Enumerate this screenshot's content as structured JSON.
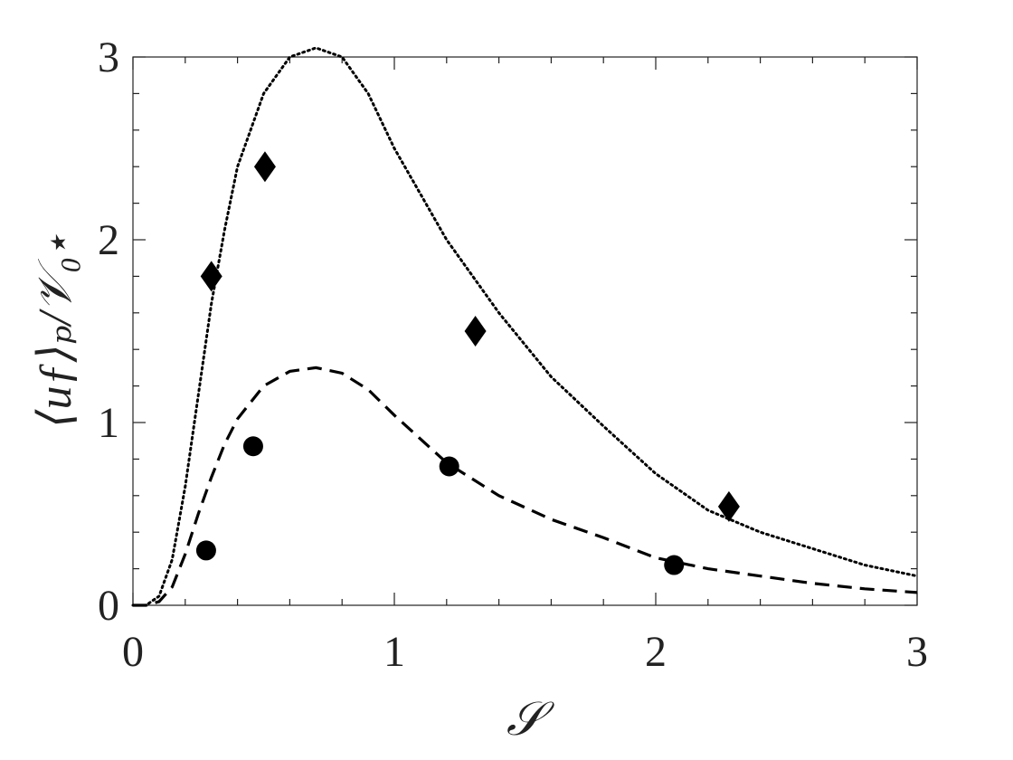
{
  "chart_data": {
    "type": "line",
    "x_label": "𝒮",
    "y_label": "⟨uƒ⟩ₚ/𝒱₀⋆",
    "xlim": [
      0,
      3
    ],
    "ylim": [
      0,
      3
    ],
    "xticks": [
      0,
      1,
      2,
      3
    ],
    "yticks": [
      0,
      1,
      2,
      3
    ],
    "xminorticks": [
      0.2,
      0.4,
      0.6,
      0.8,
      1.2,
      1.4,
      1.6,
      1.8,
      2.2,
      2.4,
      2.6,
      2.8
    ],
    "yminorticks": [
      0.2,
      0.4,
      0.6,
      0.8,
      1.2,
      1.4,
      1.6,
      1.8,
      2.2,
      2.4,
      2.6,
      2.8
    ],
    "grid": false,
    "series": [
      {
        "style": "dotted",
        "color": "#000000",
        "x": [
          0,
          0.05,
          0.1,
          0.15,
          0.2,
          0.25,
          0.3,
          0.35,
          0.4,
          0.5,
          0.6,
          0.7,
          0.8,
          0.9,
          1.0,
          1.2,
          1.4,
          1.6,
          1.8,
          2.0,
          2.2,
          2.4,
          2.6,
          2.8,
          3.0
        ],
        "values": [
          0,
          0,
          0.05,
          0.25,
          0.65,
          1.15,
          1.65,
          2.05,
          2.4,
          2.8,
          3.0,
          3.05,
          3.0,
          2.8,
          2.5,
          2.0,
          1.6,
          1.25,
          0.98,
          0.72,
          0.52,
          0.4,
          0.31,
          0.22,
          0.16
        ]
      },
      {
        "style": "dashed",
        "color": "#000000",
        "x": [
          0,
          0.05,
          0.1,
          0.15,
          0.2,
          0.25,
          0.3,
          0.35,
          0.4,
          0.5,
          0.6,
          0.7,
          0.8,
          0.9,
          1.0,
          1.2,
          1.4,
          1.6,
          1.8,
          2.0,
          2.2,
          2.4,
          2.6,
          2.8,
          3.0
        ],
        "values": [
          0,
          0,
          0.02,
          0.1,
          0.28,
          0.5,
          0.7,
          0.88,
          1.02,
          1.2,
          1.28,
          1.3,
          1.27,
          1.18,
          1.04,
          0.78,
          0.6,
          0.47,
          0.37,
          0.26,
          0.2,
          0.16,
          0.12,
          0.09,
          0.07
        ]
      },
      {
        "style": "marker",
        "marker": "diamond",
        "color": "#000000",
        "x": [
          0.3,
          0.505,
          1.31,
          2.28
        ],
        "values": [
          1.8,
          2.4,
          1.5,
          0.54
        ]
      },
      {
        "style": "marker",
        "marker": "circle",
        "color": "#000000",
        "x": [
          0.28,
          0.46,
          1.21,
          2.07
        ],
        "values": [
          0.3,
          0.87,
          0.76,
          0.22
        ]
      }
    ]
  }
}
